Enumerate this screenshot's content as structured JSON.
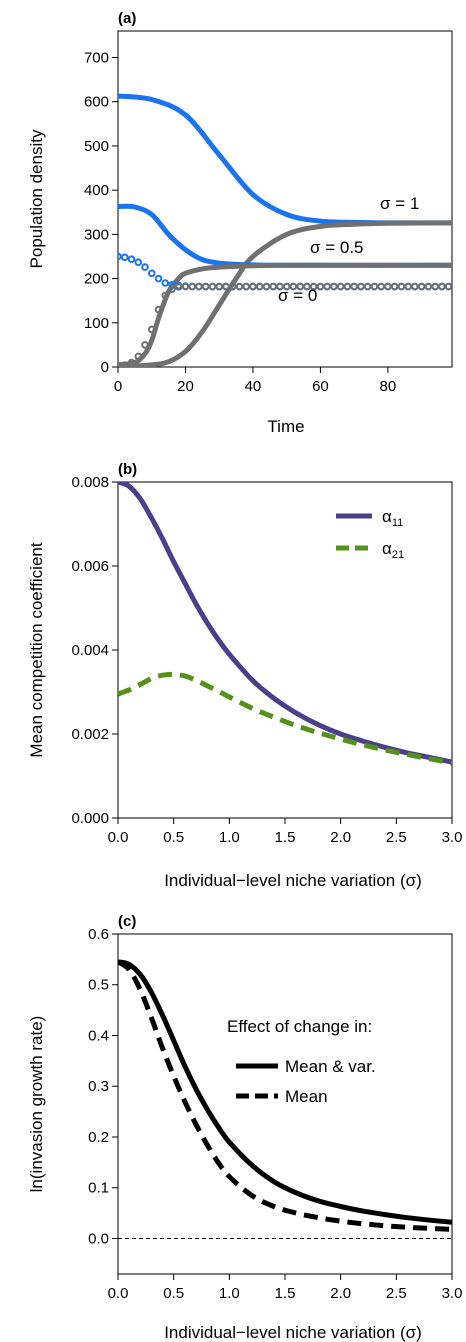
{
  "chart_data": [
    {
      "panel": "(a)",
      "type": "line",
      "xlabel": "Time",
      "ylabel": "Population density",
      "xlim": [
        0,
        99
      ],
      "ylim": [
        0,
        760
      ],
      "xticks": [
        0,
        20,
        40,
        60,
        80
      ],
      "yticks": [
        0,
        100,
        200,
        300,
        400,
        500,
        600,
        700
      ],
      "annotations": [
        "σ = 1",
        "σ = 0.5",
        "σ = 0"
      ],
      "series": [
        {
          "group": "σ = 1",
          "color": "#1a73f0",
          "style": "line",
          "x": [
            0,
            10,
            20,
            30,
            40,
            50,
            60,
            70,
            80,
            99
          ],
          "y": [
            613,
            605,
            570,
            480,
            390,
            345,
            330,
            327,
            326,
            326
          ]
        },
        {
          "group": "σ = 1",
          "color": "#707070",
          "style": "line",
          "x": [
            0,
            10,
            15,
            20,
            25,
            30,
            35,
            40,
            50,
            60,
            70,
            80,
            99
          ],
          "y": [
            0,
            5,
            12,
            35,
            80,
            140,
            200,
            250,
            300,
            318,
            323,
            325,
            326
          ]
        },
        {
          "group": "σ = 0.5",
          "color": "#1a73f0",
          "style": "line",
          "x": [
            0,
            5,
            10,
            15,
            20,
            25,
            30,
            35,
            40,
            50,
            99
          ],
          "y": [
            363,
            362,
            345,
            300,
            265,
            243,
            235,
            232,
            231,
            230,
            230
          ]
        },
        {
          "group": "σ = 0.5",
          "color": "#707070",
          "style": "line",
          "x": [
            0,
            5,
            8,
            10,
            12,
            15,
            18,
            20,
            25,
            30,
            40,
            50,
            99
          ],
          "y": [
            5,
            10,
            30,
            60,
            110,
            170,
            200,
            212,
            222,
            226,
            229,
            230,
            230
          ]
        },
        {
          "group": "σ = 0",
          "color": "#1a73f0",
          "style": "points",
          "x": [
            0,
            2,
            4,
            6,
            8,
            10,
            12,
            14,
            16,
            18,
            20,
            22,
            24,
            26,
            28,
            30,
            32,
            34,
            36,
            38,
            40,
            42,
            44,
            46,
            48,
            50,
            52,
            54,
            56,
            58,
            60,
            62,
            64,
            66,
            68,
            70,
            72,
            74,
            76,
            78,
            80,
            82,
            84,
            86,
            88,
            90,
            92,
            94,
            96,
            98
          ],
          "y": [
            250,
            248,
            244,
            237,
            226,
            212,
            200,
            190,
            186,
            184,
            183,
            182,
            182,
            182,
            182,
            182,
            182,
            182,
            182,
            182,
            182,
            182,
            182,
            182,
            182,
            182,
            182,
            182,
            182,
            182,
            182,
            182,
            182,
            182,
            182,
            182,
            182,
            182,
            182,
            182,
            182,
            182,
            182,
            182,
            182,
            182,
            182,
            182,
            182,
            182
          ]
        },
        {
          "group": "σ = 0",
          "color": "#707070",
          "style": "points",
          "x": [
            0,
            2,
            4,
            6,
            8,
            10,
            12,
            14,
            16,
            18,
            20,
            22,
            24,
            26,
            28,
            30,
            32,
            34,
            36,
            38,
            40,
            42,
            44,
            46,
            48,
            50,
            52,
            54,
            56,
            58,
            60,
            62,
            64,
            66,
            68,
            70,
            72,
            74,
            76,
            78,
            80,
            82,
            84,
            86,
            88,
            90,
            92,
            94,
            96,
            98
          ],
          "y": [
            2,
            4,
            10,
            24,
            50,
            85,
            130,
            162,
            176,
            181,
            182,
            182,
            182,
            182,
            182,
            182,
            182,
            182,
            182,
            182,
            182,
            182,
            182,
            182,
            182,
            182,
            182,
            182,
            182,
            182,
            182,
            182,
            182,
            182,
            182,
            182,
            182,
            182,
            182,
            182,
            182,
            182,
            182,
            182,
            182,
            182,
            182,
            182,
            182,
            182
          ]
        }
      ]
    },
    {
      "panel": "(b)",
      "type": "line",
      "xlabel": "Individual−level niche variation (σ)",
      "ylabel": "Mean competition coefficient",
      "xlim": [
        0,
        3
      ],
      "ylim": [
        0,
        0.008
      ],
      "xticks": [
        0.0,
        0.5,
        1.0,
        1.5,
        2.0,
        2.5,
        3.0
      ],
      "yticks": [
        0.0,
        0.002,
        0.004,
        0.006,
        0.008
      ],
      "xtick_labels": [
        "0.0",
        "0.5",
        "1.0",
        "1.5",
        "2.0",
        "2.5",
        "3.0"
      ],
      "ytick_labels": [
        "0.000",
        "0.002",
        "0.004",
        "0.006",
        "0.008"
      ],
      "legend": {
        "position": "top-right",
        "entries": [
          "α11",
          "α21"
        ]
      },
      "series": [
        {
          "name": "α11",
          "base": "α",
          "sub": "11",
          "color": "#4a3f8a",
          "dash": "solid",
          "x": [
            0,
            0.1,
            0.2,
            0.3,
            0.4,
            0.5,
            0.6,
            0.7,
            0.8,
            0.9,
            1.0,
            1.2,
            1.4,
            1.6,
            1.8,
            2.0,
            2.2,
            2.4,
            2.6,
            2.8,
            3.0
          ],
          "y": [
            0.008,
            0.0079,
            0.0076,
            0.00715,
            0.00665,
            0.0061,
            0.0056,
            0.0051,
            0.00465,
            0.00425,
            0.0039,
            0.0033,
            0.00285,
            0.0025,
            0.00222,
            0.002,
            0.00183,
            0.00168,
            0.00155,
            0.00144,
            0.00133
          ]
        },
        {
          "name": "α21",
          "base": "α",
          "sub": "21",
          "color": "#55911a",
          "dash": "dashed",
          "x": [
            0,
            0.1,
            0.2,
            0.3,
            0.4,
            0.5,
            0.6,
            0.7,
            0.8,
            0.9,
            1.0,
            1.2,
            1.4,
            1.6,
            1.8,
            2.0,
            2.2,
            2.4,
            2.6,
            2.8,
            3.0
          ],
          "y": [
            0.00295,
            0.00305,
            0.00318,
            0.00332,
            0.0034,
            0.00342,
            0.00338,
            0.00328,
            0.00315,
            0.00302,
            0.00288,
            0.00262,
            0.0024,
            0.0022,
            0.00203,
            0.00188,
            0.00174,
            0.00162,
            0.00151,
            0.00141,
            0.00131
          ]
        }
      ]
    },
    {
      "panel": "(c)",
      "type": "line",
      "xlabel": "Individual−level niche variation (σ)",
      "ylabel": "ln(invasion growth rate)",
      "xlim": [
        0,
        3
      ],
      "ylim": [
        -0.07,
        0.6
      ],
      "xticks": [
        0.0,
        0.5,
        1.0,
        1.5,
        2.0,
        2.5,
        3.0
      ],
      "yticks": [
        0.0,
        0.1,
        0.2,
        0.3,
        0.4,
        0.5,
        0.6
      ],
      "xtick_labels": [
        "0.0",
        "0.5",
        "1.0",
        "1.5",
        "2.0",
        "2.5",
        "3.0"
      ],
      "ytick_labels": [
        "0.0",
        "0.1",
        "0.2",
        "0.3",
        "0.4",
        "0.5",
        "0.6"
      ],
      "reference_line": {
        "y": 0,
        "style": "dashed"
      },
      "legend": {
        "title": "Effect of change in:",
        "position": "top-right",
        "entries": [
          "Mean & var.",
          "Mean"
        ]
      },
      "series": [
        {
          "name": "Mean & var.",
          "color": "#000000",
          "dash": "solid",
          "x": [
            0,
            0.1,
            0.2,
            0.3,
            0.4,
            0.5,
            0.6,
            0.7,
            0.8,
            0.9,
            1.0,
            1.2,
            1.4,
            1.6,
            1.8,
            2.0,
            2.2,
            2.4,
            2.6,
            2.8,
            3.0
          ],
          "y": [
            0.545,
            0.54,
            0.52,
            0.485,
            0.44,
            0.39,
            0.34,
            0.295,
            0.255,
            0.22,
            0.19,
            0.145,
            0.112,
            0.09,
            0.074,
            0.063,
            0.054,
            0.047,
            0.041,
            0.036,
            0.032
          ]
        },
        {
          "name": "Mean",
          "color": "#000000",
          "dash": "dashed",
          "x": [
            0,
            0.1,
            0.2,
            0.3,
            0.4,
            0.5,
            0.6,
            0.7,
            0.8,
            0.9,
            1.0,
            1.2,
            1.4,
            1.6,
            1.8,
            2.0,
            2.2,
            2.4,
            2.6,
            2.8,
            3.0
          ],
          "y": [
            0.545,
            0.53,
            0.49,
            0.435,
            0.375,
            0.32,
            0.27,
            0.225,
            0.185,
            0.15,
            0.122,
            0.085,
            0.063,
            0.05,
            0.041,
            0.034,
            0.029,
            0.025,
            0.022,
            0.02,
            0.018
          ]
        }
      ]
    }
  ]
}
